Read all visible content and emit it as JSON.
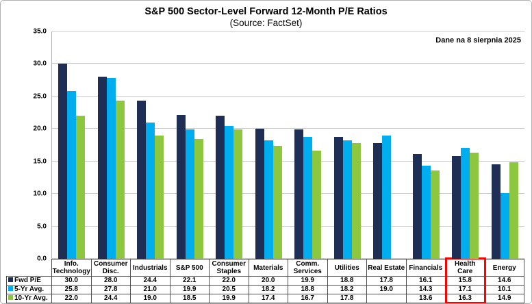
{
  "title": "S&P 500 Sector-Level Forward 12-Month P/E Ratios",
  "subtitle": "(Source: FactSet)",
  "annotation": "Dane na 8 sierpnia 2025",
  "colors": {
    "fwd_pe": "#1f2e55",
    "avg_5yr": "#00aeef",
    "avg_10yr": "#8dc63f",
    "highlight": "#ff0000",
    "gridline": "#c9c9c9"
  },
  "chart_data": {
    "type": "bar",
    "categories": [
      "Info.\nTechnology",
      "Consumer\nDisc.",
      "Industrials",
      "S&P 500",
      "Consumer\nStaples",
      "Materials",
      "Comm.\nServices",
      "Utilities",
      "Real Estate",
      "Financials",
      "Health\nCare",
      "Energy"
    ],
    "series": [
      {
        "name": "Fwd P/E",
        "color": "#1f2e55",
        "values": [
          30.0,
          28.0,
          24.4,
          22.1,
          22.0,
          20.0,
          19.9,
          18.8,
          17.8,
          16.1,
          15.8,
          14.6
        ]
      },
      {
        "name": "5-Yr Avg.",
        "color": "#00aeef",
        "values": [
          25.8,
          27.8,
          21.0,
          19.9,
          20.5,
          18.2,
          18.8,
          18.2,
          19.0,
          14.3,
          17.1,
          10.1
        ]
      },
      {
        "name": "10-Yr Avg.",
        "color": "#8dc63f",
        "values": [
          22.0,
          24.4,
          19.0,
          18.5,
          19.9,
          17.4,
          16.7,
          17.8,
          null,
          13.6,
          16.3,
          14.9
        ]
      }
    ],
    "ylim": [
      0,
      35
    ],
    "ytick_step": 5,
    "yticks": [
      "35.0",
      "30.0",
      "25.0",
      "20.0",
      "15.0",
      "10.0",
      "5.0",
      "0.0"
    ],
    "grid": true,
    "legend_position": "table-left-markers",
    "highlighted_category": "Health\nCare"
  }
}
